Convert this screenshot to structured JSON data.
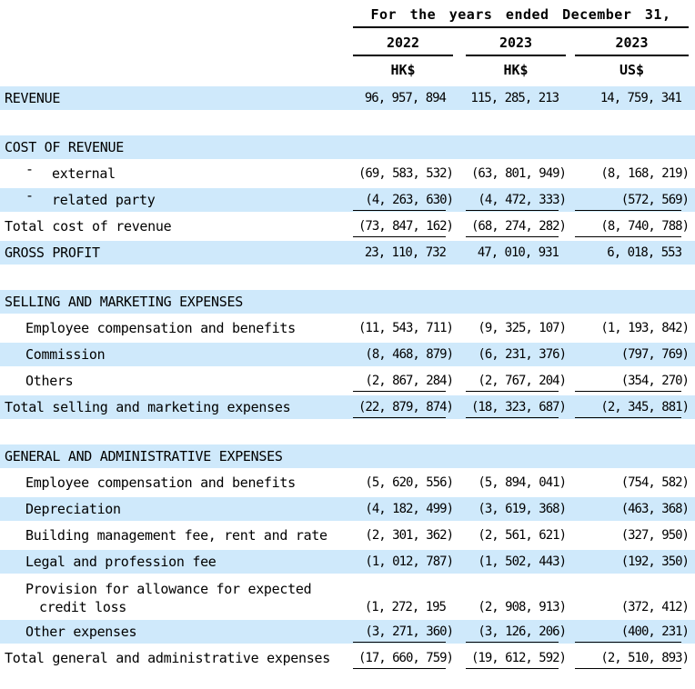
{
  "colors": {
    "highlight_row": "#cfe9fb",
    "text": "#000000",
    "rule": "#000000"
  },
  "table": {
    "header": {
      "period_title": "For the years ended December 31,",
      "columns": [
        {
          "year": "2022",
          "currency": "HK$"
        },
        {
          "year": "2023",
          "currency": "HK$"
        },
        {
          "year": "2023",
          "currency": "US$"
        }
      ]
    },
    "sections": [
      {
        "rows": [
          {
            "label": "REVENUE",
            "highlight": true,
            "values": [
              "96, 957, 894",
              "115, 285, 213",
              "14, 759, 341"
            ]
          }
        ]
      },
      {
        "rows": [
          {
            "label": "COST OF REVENUE",
            "highlight": true
          },
          {
            "label": "external",
            "bullet": "-",
            "indent": "dash",
            "values": [
              "(69, 583, 532)",
              "(63, 801, 949)",
              "(8, 168, 219)"
            ]
          },
          {
            "label": "related party",
            "bullet": "-",
            "indent": "dash",
            "highlight": true,
            "underline": true,
            "values": [
              "(4, 263, 630)",
              "(4, 472, 333)",
              "(572, 569)"
            ]
          },
          {
            "label": "Total cost of revenue",
            "underline": true,
            "values": [
              "(73, 847, 162)",
              "(68, 274, 282)",
              "(8, 740, 788)"
            ]
          },
          {
            "label": "GROSS PROFIT",
            "highlight": true,
            "values": [
              "23, 110, 732",
              "47, 010, 931",
              "6, 018, 553"
            ]
          }
        ]
      },
      {
        "rows": [
          {
            "label": "SELLING AND MARKETING EXPENSES",
            "highlight": true
          },
          {
            "label": "Employee compensation and benefits",
            "indent": "sub",
            "values": [
              "(11, 543, 711)",
              "(9, 325, 107)",
              "(1, 193, 842)"
            ]
          },
          {
            "label": "Commission",
            "indent": "sub",
            "highlight": true,
            "values": [
              "(8, 468, 879)",
              "(6, 231, 376)",
              "(797, 769)"
            ]
          },
          {
            "label": "Others",
            "indent": "sub",
            "underline": true,
            "values": [
              "(2, 867, 284)",
              "(2, 767, 204)",
              "(354, 270)"
            ]
          },
          {
            "label": "Total selling and marketing expenses",
            "highlight": true,
            "underline": true,
            "values": [
              "(22, 879, 874)",
              "(18, 323, 687)",
              "(2, 345, 881)"
            ]
          }
        ]
      },
      {
        "rows": [
          {
            "label": "GENERAL AND ADMINISTRATIVE EXPENSES",
            "highlight": true
          },
          {
            "label": "Employee compensation and benefits",
            "indent": "sub",
            "values": [
              "(5, 620, 556)",
              "(5, 894, 041)",
              "(754, 582)"
            ]
          },
          {
            "label": "Depreciation",
            "indent": "sub",
            "highlight": true,
            "values": [
              "(4, 182, 499)",
              "(3, 619, 368)",
              "(463, 368)"
            ]
          },
          {
            "label": "Building management fee, rent and rate",
            "indent": "sub",
            "values": [
              "(2, 301, 362)",
              "(2, 561, 621)",
              "(327, 950)"
            ]
          },
          {
            "label": "Legal and profession fee",
            "indent": "sub",
            "highlight": true,
            "values": [
              "(1, 012, 787)",
              "(1, 502, 443)",
              "(192, 350)"
            ]
          },
          {
            "label": "Provision for allowance for expected credit loss",
            "indent": "sub",
            "wrap": true,
            "values": [
              "(1, 272, 195",
              "(2, 908, 913)",
              "(372, 412)"
            ]
          },
          {
            "label": "Other expenses",
            "indent": "sub",
            "highlight": true,
            "underline": true,
            "values": [
              "(3, 271, 360)",
              "(3, 126, 206)",
              "(400, 231)"
            ]
          },
          {
            "label": "Total general and administrative expenses",
            "underline": true,
            "values": [
              "(17, 660, 759)",
              "(19, 612, 592)",
              "(2, 510, 893)"
            ]
          }
        ]
      }
    ]
  }
}
